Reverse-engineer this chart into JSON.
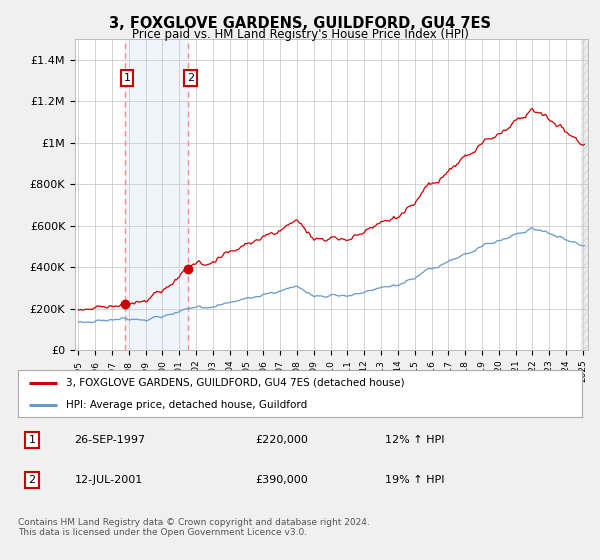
{
  "title": "3, FOXGLOVE GARDENS, GUILDFORD, GU4 7ES",
  "subtitle": "Price paid vs. HM Land Registry's House Price Index (HPI)",
  "legend_line1": "3, FOXGLOVE GARDENS, GUILDFORD, GU4 7ES (detached house)",
  "legend_line2": "HPI: Average price, detached house, Guildford",
  "transaction1_date": "26-SEP-1997",
  "transaction1_price": "£220,000",
  "transaction1_hpi": "12% ↑ HPI",
  "transaction2_date": "12-JUL-2001",
  "transaction2_price": "£390,000",
  "transaction2_hpi": "19% ↑ HPI",
  "footer": "Contains HM Land Registry data © Crown copyright and database right 2024.\nThis data is licensed under the Open Government Licence v3.0.",
  "property_color": "#cc0000",
  "hpi_color": "#6699cc",
  "dashed_line_color": "#ff8888",
  "shade_color": "#ddeeff",
  "background_color": "#f0f0f0",
  "plot_bg_color": "#ffffff",
  "ylim": [
    0,
    1500000
  ],
  "yticks": [
    0,
    200000,
    400000,
    600000,
    800000,
    1000000,
    1200000,
    1400000
  ],
  "ytick_labels": [
    "£0",
    "£200K",
    "£400K",
    "£600K",
    "£800K",
    "£1M",
    "£1.2M",
    "£1.4M"
  ],
  "transaction1_year": 1997.75,
  "transaction1_value": 220000,
  "transaction2_year": 2001.53,
  "transaction2_value": 390000,
  "xmin": 1994.8,
  "xmax": 2025.3
}
